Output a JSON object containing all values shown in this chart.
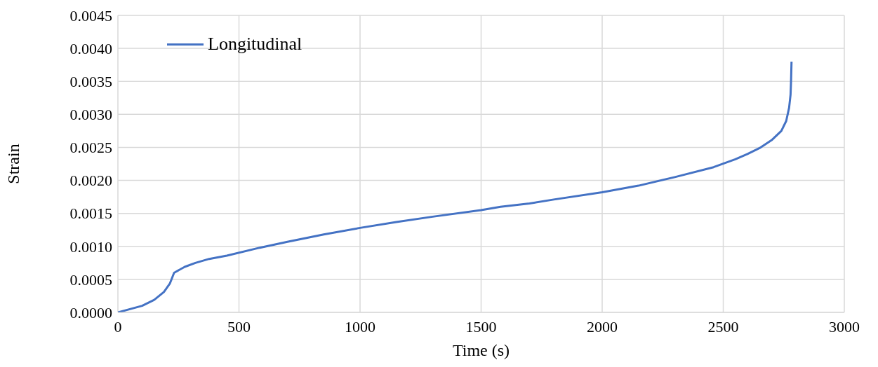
{
  "chart_data": {
    "type": "line",
    "xlabel": "Time (s)",
    "ylabel": "Strain",
    "x": [
      0,
      100,
      150,
      190,
      215,
      232,
      276,
      320,
      377,
      450,
      586,
      700,
      850,
      1000,
      1150,
      1300,
      1500,
      1580,
      1700,
      1800,
      2000,
      2150,
      2300,
      2460,
      2550,
      2600,
      2650,
      2700,
      2740,
      2760,
      2772,
      2778,
      2780,
      2782
    ],
    "series": [
      {
        "name": "Longitudinal",
        "color": "#4472c4",
        "values": [
          0,
          0.0001,
          0.00019,
          0.00031,
          0.00044,
          0.0006,
          0.00069,
          0.00075,
          0.00081,
          0.00086,
          0.00098,
          0.00107,
          0.00118,
          0.00128,
          0.00137,
          0.00145,
          0.00155,
          0.0016,
          0.00165,
          0.00171,
          0.00182,
          0.00192,
          0.00205,
          0.0022,
          0.00232,
          0.0024,
          0.00249,
          0.00261,
          0.00275,
          0.0029,
          0.0031,
          0.0033,
          0.0035,
          0.0038
        ]
      }
    ],
    "xlim": [
      0,
      3000
    ],
    "xticks": [
      0,
      500,
      1000,
      1500,
      2000,
      2500,
      3000
    ],
    "ylim": [
      0,
      0.0045
    ],
    "yticks": [
      {
        "value": 0,
        "label": "0.0000"
      },
      {
        "value": 0.0005,
        "label": "0.0005"
      },
      {
        "value": 0.001,
        "label": "0.0010"
      },
      {
        "value": 0.0015,
        "label": "0.0015"
      },
      {
        "value": 0.002,
        "label": "0.0020"
      },
      {
        "value": 0.0025,
        "label": "0.0025"
      },
      {
        "value": 0.003,
        "label": "0.0030"
      },
      {
        "value": 0.0035,
        "label": "0.0035"
      },
      {
        "value": 0.004,
        "label": "0.0040"
      },
      {
        "value": 0.0045,
        "label": "0.0045"
      }
    ],
    "grid": true,
    "legend": "top left",
    "marker": "none",
    "line_style": "solid"
  }
}
